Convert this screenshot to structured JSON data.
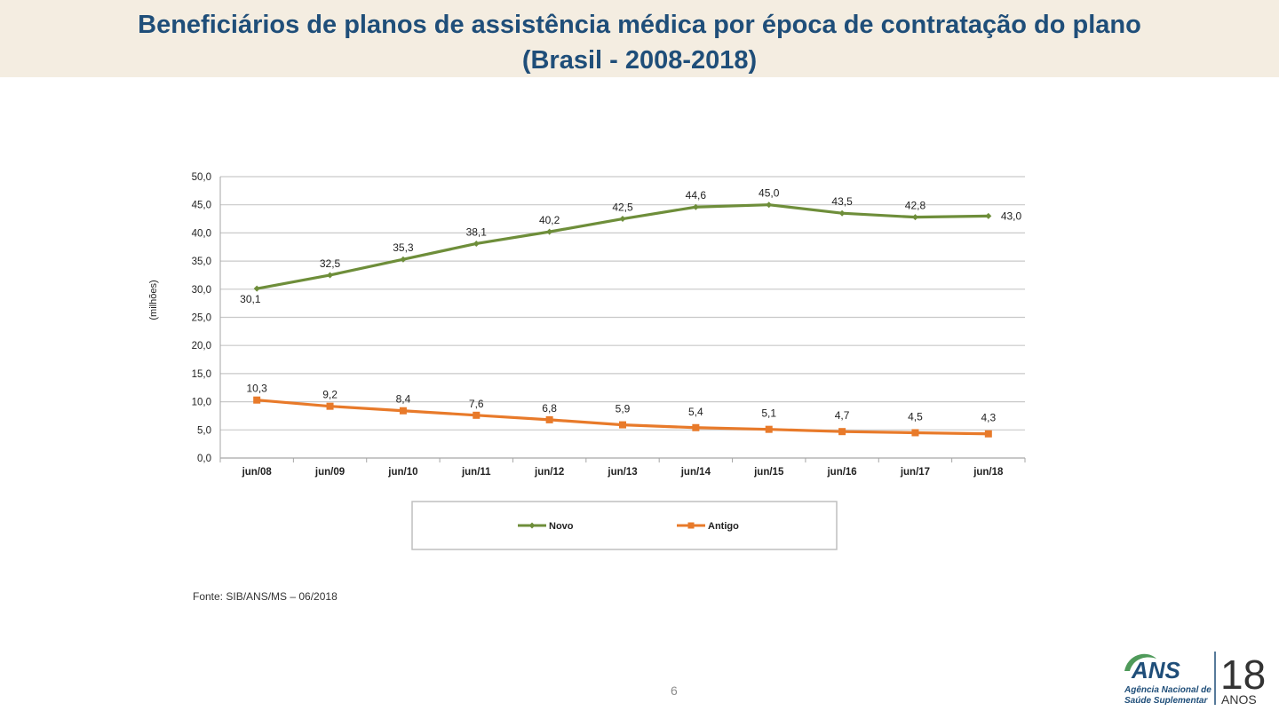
{
  "header": {
    "title_line1": "Beneficiários de planos de assistência médica por época de contratação do plano",
    "title_line2": "(Brasil - 2008-2018)"
  },
  "chart_data": {
    "type": "line",
    "title": "Beneficiários de planos de assistência médica por época de contratação do plano (Brasil - 2008-2018)",
    "xlabel": "",
    "ylabel": "(milhões)",
    "ylim": [
      0,
      50
    ],
    "y_ticks": [
      "0,0",
      "5,0",
      "10,0",
      "15,0",
      "20,0",
      "25,0",
      "30,0",
      "35,0",
      "40,0",
      "45,0",
      "50,0"
    ],
    "grid": true,
    "legend_position": "bottom",
    "categories": [
      "jun/08",
      "jun/09",
      "jun/10",
      "jun/11",
      "jun/12",
      "jun/13",
      "jun/14",
      "jun/15",
      "jun/16",
      "jun/17",
      "jun/18"
    ],
    "series": [
      {
        "name": "Novo",
        "color": "#6e8e3a",
        "marker": "diamond",
        "values": [
          30.1,
          32.5,
          35.3,
          38.1,
          40.2,
          42.5,
          44.6,
          45.0,
          43.5,
          42.8,
          43.0
        ],
        "labels": [
          "30,1",
          "32,5",
          "35,3",
          "38,1",
          "40,2",
          "42,5",
          "44,6",
          "45,0",
          "43,5",
          "42,8",
          "43,0"
        ]
      },
      {
        "name": "Antigo",
        "color": "#e87a2a",
        "marker": "square",
        "values": [
          10.3,
          9.2,
          8.4,
          7.6,
          6.8,
          5.9,
          5.4,
          5.1,
          4.7,
          4.5,
          4.3
        ],
        "labels": [
          "10,3",
          "9,2",
          "8,4",
          "7,6",
          "6,8",
          "5,9",
          "5,4",
          "5,1",
          "4,7",
          "4,5",
          "4,3"
        ]
      }
    ]
  },
  "footer": {
    "source": "Fonte: SIB/ANS/MS – 06/2018",
    "page_number": "6"
  },
  "logo": {
    "brand": "ANS",
    "line1": "Agência Nacional de",
    "line2": "Saúde Suplementar",
    "anniversary_number": "18",
    "anniversary_word": "ANOS",
    "colors": {
      "brand": "#1f4e79",
      "accent": "#4f9a5a"
    }
  }
}
